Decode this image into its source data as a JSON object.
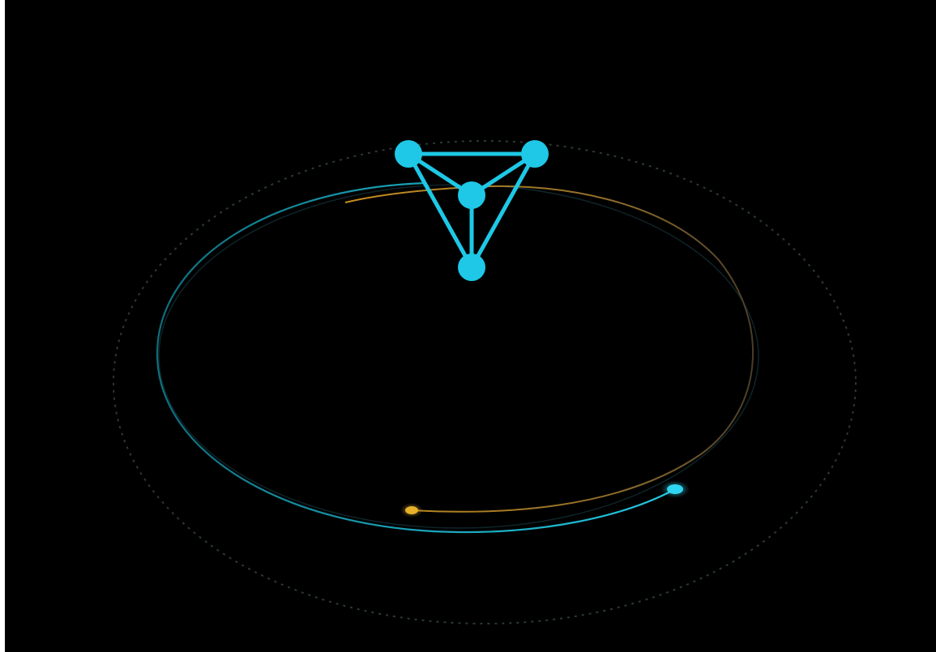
{
  "scene": {
    "background_color": "#000000",
    "graph_icon": "network-graph-icon",
    "graph": {
      "nodes": [
        "top-left",
        "top-right",
        "center",
        "bottom"
      ],
      "edges": [
        [
          "top-left",
          "top-right"
        ],
        [
          "top-left",
          "center"
        ],
        [
          "top-right",
          "center"
        ],
        [
          "top-left",
          "bottom"
        ],
        [
          "top-right",
          "bottom"
        ],
        [
          "center",
          "bottom"
        ]
      ],
      "color": "#1ec8e6"
    },
    "orbits": {
      "outer_dotted_color": "#3a4a44",
      "cyan_orbit_color": "#1aa3b8",
      "gold_orbit_color": "#b8862a",
      "cyan_dot_color": "#2fd6f2",
      "gold_dot_color": "#e7b12a"
    }
  }
}
